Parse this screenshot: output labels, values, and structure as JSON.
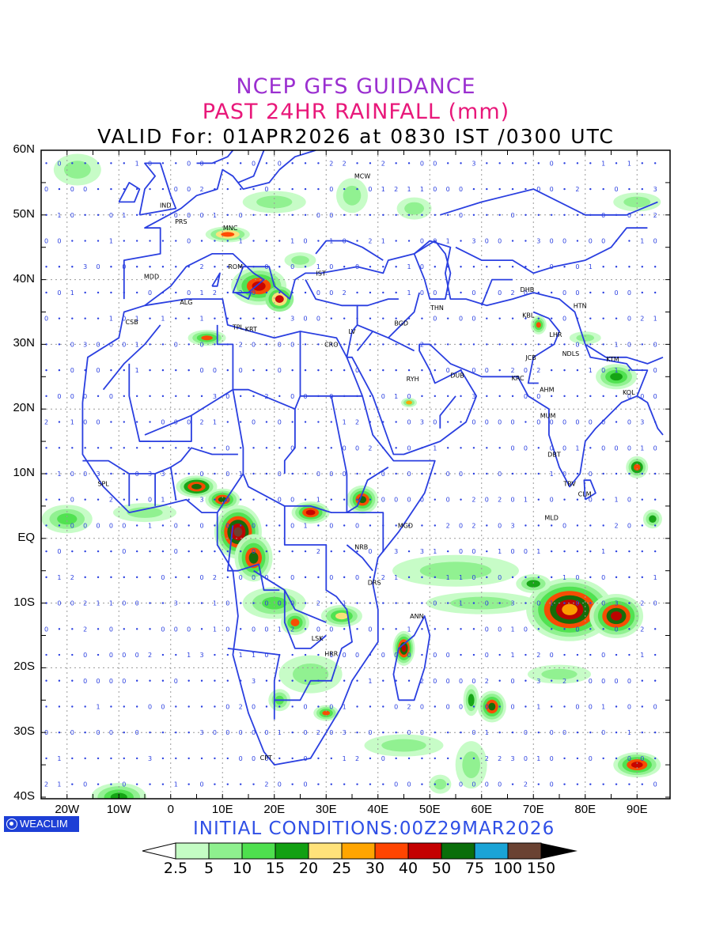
{
  "titles": {
    "line1": "NCEP GFS GUIDANCE",
    "line2": "PAST 24HR RAINFALL (mm)",
    "line3": "VALID For: 01APR2026 at 0830 IST /0300 UTC"
  },
  "map": {
    "lat_labels": [
      "60N",
      "50N",
      "40N",
      "30N",
      "20N",
      "10N",
      "EQ",
      "10S",
      "20S",
      "30S",
      "40S"
    ],
    "lon_labels": [
      "20W",
      "10W",
      "0",
      "10E",
      "20E",
      "30E",
      "40E",
      "50E",
      "60E",
      "70E",
      "80E",
      "90E"
    ],
    "colors": {
      "border": "#2a3fe0",
      "grid": "#9a9a9a",
      "dots": "#2a3fe0"
    },
    "stations": [
      "MCW",
      "IND",
      "PRS",
      "MNC",
      "ROM",
      "IST",
      "MDD",
      "ALG",
      "CSB",
      "TPL",
      "KRT",
      "CRO",
      "LV",
      "BGD",
      "THN",
      "RYH",
      "DUB",
      "DHB",
      "HTN",
      "KBL",
      "LHR",
      "JCB",
      "NDLS",
      "KTM",
      "KRC",
      "AHM",
      "KOL",
      "MUM",
      "DBT",
      "TRV",
      "CLM",
      "MLD",
      "SPL",
      "MGD",
      "NRB",
      "DRS",
      "ANN",
      "HRR",
      "LSK",
      "CPT"
    ]
  },
  "logo": "WEACLIM",
  "initial_conditions": "INITIAL CONDITIONS:00Z29MAR2026",
  "colorbar": {
    "labels": [
      "2.5",
      "5",
      "10",
      "15",
      "20",
      "25",
      "30",
      "40",
      "50",
      "75",
      "100",
      "150"
    ],
    "colors": [
      "#c4fcc4",
      "#8ef08e",
      "#4ee04e",
      "#12a012",
      "#ffe27a",
      "#ffa500",
      "#ff4500",
      "#c40000",
      "#0a6e0a",
      "#1aa4d6",
      "#6a4232"
    ]
  }
}
